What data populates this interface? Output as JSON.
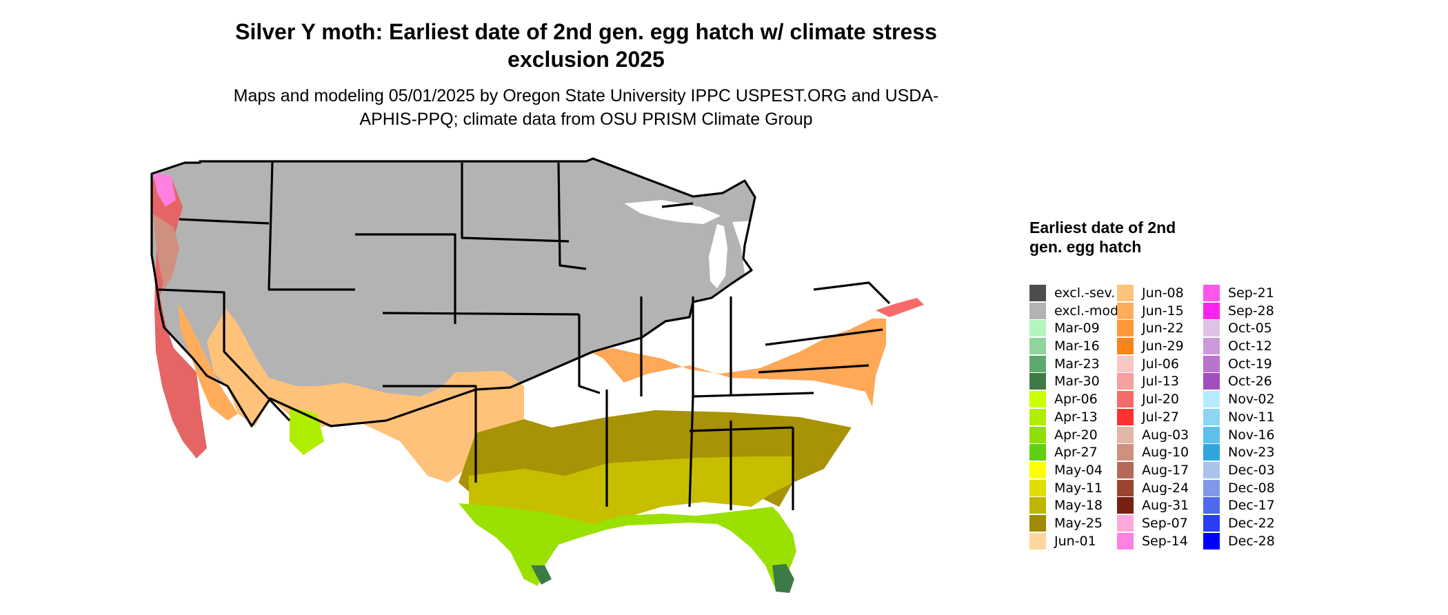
{
  "title": "Silver Y moth: Earliest date of 2nd gen. egg hatch w/ climate stress exclusion 2025",
  "subtitle": "Maps and modeling 05/01/2025 by Oregon State University IPPC USPEST.ORG and USDA-APHIS-PPQ; climate data from OSU PRISM Climate Group",
  "legend": {
    "title": "Earliest date of 2nd gen. egg hatch",
    "columns": [
      [
        {
          "label": "excl.-sev.",
          "color": "#4d4d4d"
        },
        {
          "label": "excl.-mod.",
          "color": "#b3b3b3"
        },
        {
          "label": "Mar-09",
          "color": "#b3f5c0"
        },
        {
          "label": "Mar-16",
          "color": "#8fd49e"
        },
        {
          "label": "Mar-23",
          "color": "#5fa86d"
        },
        {
          "label": "Mar-30",
          "color": "#3d7a45"
        },
        {
          "label": "Apr-06",
          "color": "#ccff00"
        },
        {
          "label": "Apr-13",
          "color": "#b0ee00"
        },
        {
          "label": "Apr-20",
          "color": "#8fe000"
        },
        {
          "label": "Apr-27",
          "color": "#5fd010"
        },
        {
          "label": "May-04",
          "color": "#ffff00"
        },
        {
          "label": "May-11",
          "color": "#dede00"
        },
        {
          "label": "May-18",
          "color": "#bdb500"
        },
        {
          "label": "May-25",
          "color": "#a08a05"
        },
        {
          "label": "Jun-01",
          "color": "#ffd69b"
        }
      ],
      [
        {
          "label": "Jun-08",
          "color": "#ffc27a"
        },
        {
          "label": "Jun-15",
          "color": "#ffad5a"
        },
        {
          "label": "Jun-22",
          "color": "#ff9838"
        },
        {
          "label": "Jun-29",
          "color": "#ff8218"
        },
        {
          "label": "Jul-06",
          "color": "#f9c6c6"
        },
        {
          "label": "Jul-13",
          "color": "#f7a0a0"
        },
        {
          "label": "Jul-20",
          "color": "#f76a6a"
        },
        {
          "label": "Jul-27",
          "color": "#ff3030"
        },
        {
          "label": "Aug-03",
          "color": "#e3b6aa"
        },
        {
          "label": "Aug-10",
          "color": "#cf9080"
        },
        {
          "label": "Aug-17",
          "color": "#b56a58"
        },
        {
          "label": "Aug-24",
          "color": "#9a4432"
        },
        {
          "label": "Aug-31",
          "color": "#7a2010"
        },
        {
          "label": "Sep-07",
          "color": "#ffa8da"
        },
        {
          "label": "Sep-14",
          "color": "#ff80e0"
        }
      ],
      [
        {
          "label": "Sep-21",
          "color": "#ff55e8"
        },
        {
          "label": "Sep-28",
          "color": "#ff22ee"
        },
        {
          "label": "Oct-05",
          "color": "#e0c2e6"
        },
        {
          "label": "Oct-12",
          "color": "#cc9ad8"
        },
        {
          "label": "Oct-19",
          "color": "#b874cc"
        },
        {
          "label": "Oct-26",
          "color": "#a24ec0"
        },
        {
          "label": "Nov-02",
          "color": "#b6eaff"
        },
        {
          "label": "Nov-11",
          "color": "#8cd6f2"
        },
        {
          "label": "Nov-16",
          "color": "#5ec0e8"
        },
        {
          "label": "Nov-23",
          "color": "#2ea6dc"
        },
        {
          "label": "Dec-03",
          "color": "#a8c4ec"
        },
        {
          "label": "Dec-08",
          "color": "#7f98ea"
        },
        {
          "label": "Dec-17",
          "color": "#5068ee"
        },
        {
          "label": "Dec-22",
          "color": "#2a3ef4"
        },
        {
          "label": "Dec-28",
          "color": "#0000ff"
        }
      ]
    ]
  }
}
